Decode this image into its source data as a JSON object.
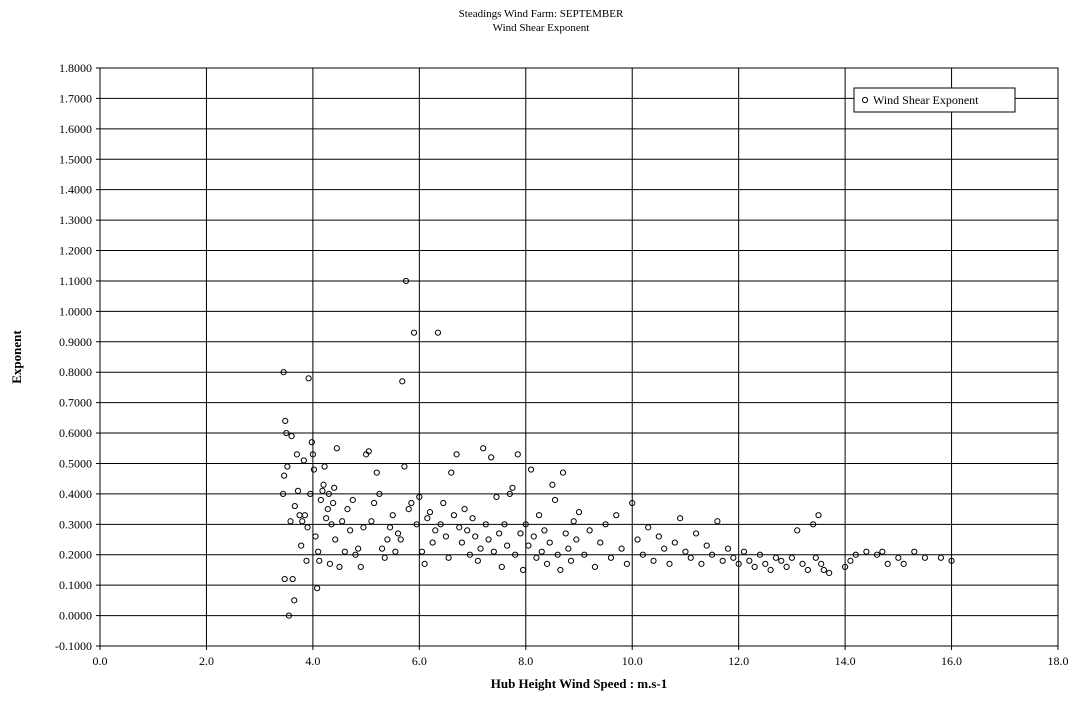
{
  "chart_data": {
    "type": "scatter",
    "title": "Steadings Wind Farm: SEPTEMBER",
    "subtitle": "Wind Shear Exponent",
    "xlabel": "Hub Height Wind Speed : m.s-1",
    "ylabel": "Exponent",
    "xlim": [
      0,
      18
    ],
    "ylim": [
      -0.1,
      1.8
    ],
    "x_ticks": [
      "0.0",
      "2.0",
      "4.0",
      "6.0",
      "8.0",
      "10.0",
      "12.0",
      "14.0",
      "16.0",
      "18.0"
    ],
    "y_ticks": [
      "-0.1000",
      "0.0000",
      "0.1000",
      "0.2000",
      "0.3000",
      "0.4000",
      "0.5000",
      "0.6000",
      "0.7000",
      "0.8000",
      "0.9000",
      "1.0000",
      "1.1000",
      "1.2000",
      "1.3000",
      "1.4000",
      "1.5000",
      "1.6000",
      "1.7000",
      "1.8000"
    ],
    "grid": true,
    "legend_position": "top-right",
    "series": [
      {
        "name": "Wind Shear Exponent",
        "marker": "open-circle",
        "color": "#000000",
        "points": [
          [
            3.45,
            0.8
          ],
          [
            3.48,
            0.64
          ],
          [
            3.5,
            0.6
          ],
          [
            3.46,
            0.46
          ],
          [
            3.52,
            0.49
          ],
          [
            3.44,
            0.4
          ],
          [
            3.47,
            0.12
          ],
          [
            3.55,
            0.0
          ],
          [
            3.6,
            0.59
          ],
          [
            3.62,
            0.12
          ],
          [
            3.65,
            0.05
          ],
          [
            3.58,
            0.31
          ],
          [
            3.7,
            0.53
          ],
          [
            3.72,
            0.41
          ],
          [
            3.66,
            0.36
          ],
          [
            3.75,
            0.33
          ],
          [
            3.78,
            0.23
          ],
          [
            3.8,
            0.31
          ],
          [
            3.83,
            0.51
          ],
          [
            3.85,
            0.33
          ],
          [
            3.88,
            0.18
          ],
          [
            3.9,
            0.29
          ],
          [
            3.92,
            0.78
          ],
          [
            3.95,
            0.4
          ],
          [
            3.98,
            0.57
          ],
          [
            4.0,
            0.53
          ],
          [
            4.02,
            0.48
          ],
          [
            4.05,
            0.26
          ],
          [
            4.08,
            0.09
          ],
          [
            4.1,
            0.21
          ],
          [
            4.12,
            0.18
          ],
          [
            4.15,
            0.38
          ],
          [
            4.18,
            0.41
          ],
          [
            4.2,
            0.43
          ],
          [
            4.22,
            0.49
          ],
          [
            4.25,
            0.32
          ],
          [
            4.28,
            0.35
          ],
          [
            4.3,
            0.4
          ],
          [
            4.32,
            0.17
          ],
          [
            4.35,
            0.3
          ],
          [
            4.38,
            0.37
          ],
          [
            4.4,
            0.42
          ],
          [
            4.42,
            0.25
          ],
          [
            4.45,
            0.55
          ],
          [
            4.5,
            0.16
          ],
          [
            4.55,
            0.31
          ],
          [
            4.6,
            0.21
          ],
          [
            4.65,
            0.35
          ],
          [
            4.7,
            0.28
          ],
          [
            4.75,
            0.38
          ],
          [
            4.8,
            0.2
          ],
          [
            4.85,
            0.22
          ],
          [
            4.9,
            0.16
          ],
          [
            4.95,
            0.29
          ],
          [
            5.0,
            0.53
          ],
          [
            5.05,
            0.54
          ],
          [
            5.1,
            0.31
          ],
          [
            5.15,
            0.37
          ],
          [
            5.2,
            0.47
          ],
          [
            5.25,
            0.4
          ],
          [
            5.3,
            0.22
          ],
          [
            5.35,
            0.19
          ],
          [
            5.4,
            0.25
          ],
          [
            5.45,
            0.29
          ],
          [
            5.5,
            0.33
          ],
          [
            5.55,
            0.21
          ],
          [
            5.6,
            0.27
          ],
          [
            5.65,
            0.25
          ],
          [
            5.68,
            0.77
          ],
          [
            5.72,
            0.49
          ],
          [
            5.75,
            1.1
          ],
          [
            5.8,
            0.35
          ],
          [
            5.85,
            0.37
          ],
          [
            5.9,
            0.93
          ],
          [
            5.95,
            0.3
          ],
          [
            6.0,
            0.39
          ],
          [
            6.05,
            0.21
          ],
          [
            6.1,
            0.17
          ],
          [
            6.15,
            0.32
          ],
          [
            6.2,
            0.34
          ],
          [
            6.25,
            0.24
          ],
          [
            6.3,
            0.28
          ],
          [
            6.35,
            0.93
          ],
          [
            6.4,
            0.3
          ],
          [
            6.45,
            0.37
          ],
          [
            6.5,
            0.26
          ],
          [
            6.55,
            0.19
          ],
          [
            6.6,
            0.47
          ],
          [
            6.65,
            0.33
          ],
          [
            6.7,
            0.53
          ],
          [
            6.75,
            0.29
          ],
          [
            6.8,
            0.24
          ],
          [
            6.85,
            0.35
          ],
          [
            6.9,
            0.28
          ],
          [
            6.95,
            0.2
          ],
          [
            7.0,
            0.32
          ],
          [
            7.05,
            0.26
          ],
          [
            7.1,
            0.18
          ],
          [
            7.15,
            0.22
          ],
          [
            7.2,
            0.55
          ],
          [
            7.25,
            0.3
          ],
          [
            7.3,
            0.25
          ],
          [
            7.35,
            0.52
          ],
          [
            7.4,
            0.21
          ],
          [
            7.45,
            0.39
          ],
          [
            7.5,
            0.27
          ],
          [
            7.55,
            0.16
          ],
          [
            7.6,
            0.3
          ],
          [
            7.65,
            0.23
          ],
          [
            7.7,
            0.4
          ],
          [
            7.75,
            0.42
          ],
          [
            7.8,
            0.2
          ],
          [
            7.85,
            0.53
          ],
          [
            7.9,
            0.27
          ],
          [
            7.95,
            0.15
          ],
          [
            8.0,
            0.3
          ],
          [
            8.05,
            0.23
          ],
          [
            8.1,
            0.48
          ],
          [
            8.15,
            0.26
          ],
          [
            8.2,
            0.19
          ],
          [
            8.25,
            0.33
          ],
          [
            8.3,
            0.21
          ],
          [
            8.35,
            0.28
          ],
          [
            8.4,
            0.17
          ],
          [
            8.45,
            0.24
          ],
          [
            8.5,
            0.43
          ],
          [
            8.55,
            0.38
          ],
          [
            8.6,
            0.2
          ],
          [
            8.65,
            0.15
          ],
          [
            8.7,
            0.47
          ],
          [
            8.75,
            0.27
          ],
          [
            8.8,
            0.22
          ],
          [
            8.85,
            0.18
          ],
          [
            8.9,
            0.31
          ],
          [
            8.95,
            0.25
          ],
          [
            9.0,
            0.34
          ],
          [
            9.1,
            0.2
          ],
          [
            9.2,
            0.28
          ],
          [
            9.3,
            0.16
          ],
          [
            9.4,
            0.24
          ],
          [
            9.5,
            0.3
          ],
          [
            9.6,
            0.19
          ],
          [
            9.7,
            0.33
          ],
          [
            9.8,
            0.22
          ],
          [
            9.9,
            0.17
          ],
          [
            10.0,
            0.37
          ],
          [
            10.1,
            0.25
          ],
          [
            10.2,
            0.2
          ],
          [
            10.3,
            0.29
          ],
          [
            10.4,
            0.18
          ],
          [
            10.5,
            0.26
          ],
          [
            10.6,
            0.22
          ],
          [
            10.7,
            0.17
          ],
          [
            10.8,
            0.24
          ],
          [
            10.9,
            0.32
          ],
          [
            11.0,
            0.21
          ],
          [
            11.1,
            0.19
          ],
          [
            11.2,
            0.27
          ],
          [
            11.3,
            0.17
          ],
          [
            11.4,
            0.23
          ],
          [
            11.5,
            0.2
          ],
          [
            11.6,
            0.31
          ],
          [
            11.7,
            0.18
          ],
          [
            11.8,
            0.22
          ],
          [
            11.9,
            0.19
          ],
          [
            12.0,
            0.17
          ],
          [
            12.1,
            0.21
          ],
          [
            12.2,
            0.18
          ],
          [
            12.3,
            0.16
          ],
          [
            12.4,
            0.2
          ],
          [
            12.5,
            0.17
          ],
          [
            12.6,
            0.15
          ],
          [
            12.7,
            0.19
          ],
          [
            12.8,
            0.18
          ],
          [
            12.9,
            0.16
          ],
          [
            13.0,
            0.19
          ],
          [
            13.1,
            0.28
          ],
          [
            13.2,
            0.17
          ],
          [
            13.3,
            0.15
          ],
          [
            13.4,
            0.3
          ],
          [
            13.45,
            0.19
          ],
          [
            13.5,
            0.33
          ],
          [
            13.55,
            0.17
          ],
          [
            13.6,
            0.15
          ],
          [
            13.7,
            0.14
          ],
          [
            14.0,
            0.16
          ],
          [
            14.1,
            0.18
          ],
          [
            14.2,
            0.2
          ],
          [
            14.4,
            0.21
          ],
          [
            14.6,
            0.2
          ],
          [
            14.7,
            0.21
          ],
          [
            14.8,
            0.17
          ],
          [
            15.0,
            0.19
          ],
          [
            15.1,
            0.17
          ],
          [
            15.3,
            0.21
          ],
          [
            15.5,
            0.19
          ],
          [
            15.8,
            0.19
          ],
          [
            16.0,
            0.18
          ]
        ]
      }
    ]
  }
}
